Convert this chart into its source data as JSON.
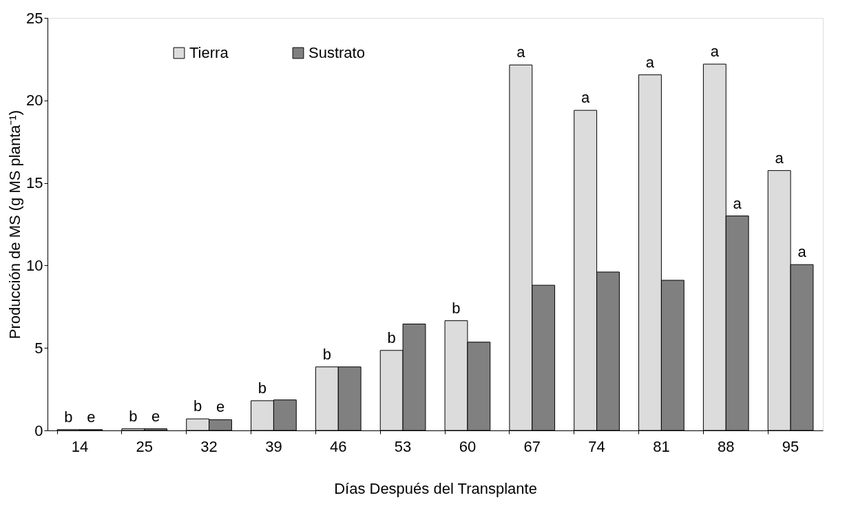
{
  "chart_data": {
    "type": "bar",
    "xlabel": "Días Después del Transplante",
    "ylabel": "Producción de MS (g MS planta⁻¹)",
    "categories": [
      "14",
      "25",
      "32",
      "39",
      "46",
      "53",
      "60",
      "67",
      "74",
      "81",
      "88",
      "95"
    ],
    "series": [
      {
        "name": "Tierra",
        "color": "#dcdcdc",
        "values": [
          0.05,
          0.1,
          0.7,
          1.8,
          3.85,
          4.85,
          6.65,
          22.15,
          19.4,
          21.55,
          22.2,
          15.75
        ]
      },
      {
        "name": "Sustrato",
        "color": "#808080",
        "values": [
          0.05,
          0.1,
          0.65,
          1.85,
          3.85,
          6.45,
          5.35,
          8.8,
          9.6,
          9.1,
          13.0,
          10.05
        ]
      }
    ],
    "ylim": [
      0,
      25
    ],
    "yticks": [
      0,
      5,
      10,
      15,
      20,
      25
    ],
    "grid": false,
    "legend": "top left",
    "annotations": [
      {
        "text": "b",
        "x": "14",
        "y": 0.05
      },
      {
        "text": "e",
        "x": "14",
        "y": 0.05
      },
      {
        "text": "b",
        "x": "25",
        "y": 0.1
      },
      {
        "text": "e",
        "x": "25",
        "y": 0.1
      },
      {
        "text": "b",
        "x": "32",
        "y": 0.7
      },
      {
        "text": "e",
        "x": "32",
        "y": 0.65
      },
      {
        "text": "b",
        "x": "39",
        "y": 1.8
      },
      {
        "text": "b",
        "x": "46",
        "y": 3.85
      },
      {
        "text": "b",
        "x": "53",
        "y": 4.85
      },
      {
        "text": "b",
        "x": "60",
        "y": 6.65
      },
      {
        "text": "a",
        "x": "67",
        "y": 22.15
      },
      {
        "text": "a",
        "x": "74",
        "y": 19.4
      },
      {
        "text": "a",
        "x": "81",
        "y": 21.55
      },
      {
        "text": "a",
        "x": "88",
        "y": 22.2
      },
      {
        "text": "a",
        "x": "88",
        "y": 13.0
      },
      {
        "text": "a",
        "x": "95",
        "y": 15.75
      },
      {
        "text": "a",
        "x": "95",
        "y": 10.05
      }
    ]
  }
}
